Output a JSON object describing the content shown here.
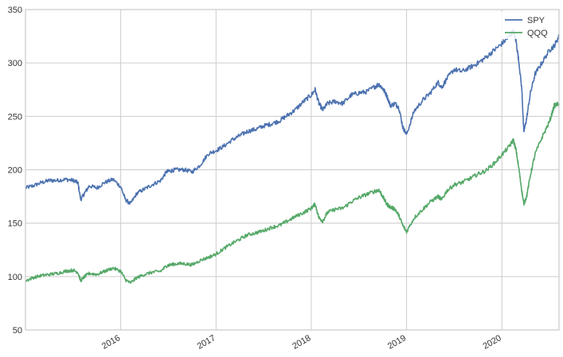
{
  "chart_data": {
    "type": "line",
    "title": "",
    "xlabel": "",
    "ylabel": "",
    "xlim": [
      2015.0,
      2020.6
    ],
    "ylim": [
      50,
      350
    ],
    "grid": true,
    "legend_position": "top-right",
    "yticks": [
      50,
      100,
      150,
      200,
      250,
      300,
      350
    ],
    "xticks": [
      {
        "value": 2016.0,
        "label": "2016"
      },
      {
        "value": 2017.0,
        "label": "2017"
      },
      {
        "value": 2018.0,
        "label": "2018"
      },
      {
        "value": 2019.0,
        "label": "2019"
      },
      {
        "value": 2020.0,
        "label": "2020"
      }
    ],
    "series": [
      {
        "name": "SPY",
        "color": "#4c72b0",
        "x": [
          2015.0,
          2015.08,
          2015.17,
          2015.25,
          2015.33,
          2015.42,
          2015.5,
          2015.55,
          2015.58,
          2015.62,
          2015.67,
          2015.75,
          2015.83,
          2015.92,
          2016.0,
          2016.05,
          2016.1,
          2016.17,
          2016.25,
          2016.33,
          2016.42,
          2016.48,
          2016.52,
          2016.58,
          2016.67,
          2016.75,
          2016.83,
          2016.92,
          2017.0,
          2017.08,
          2017.17,
          2017.25,
          2017.33,
          2017.42,
          2017.5,
          2017.58,
          2017.67,
          2017.75,
          2017.83,
          2017.92,
          2018.0,
          2018.04,
          2018.08,
          2018.12,
          2018.17,
          2018.25,
          2018.33,
          2018.42,
          2018.5,
          2018.58,
          2018.67,
          2018.71,
          2018.75,
          2018.79,
          2018.83,
          2018.88,
          2018.92,
          2018.96,
          2019.0,
          2019.08,
          2019.17,
          2019.25,
          2019.33,
          2019.37,
          2019.42,
          2019.5,
          2019.58,
          2019.67,
          2019.75,
          2019.83,
          2019.92,
          2020.0,
          2020.08,
          2020.12,
          2020.15,
          2020.18,
          2020.21,
          2020.23,
          2020.26,
          2020.3,
          2020.35,
          2020.42,
          2020.5,
          2020.55,
          2020.6
        ],
        "values": [
          183,
          185,
          188,
          190,
          190,
          191,
          190,
          188,
          172,
          178,
          185,
          183,
          188,
          191,
          184,
          172,
          168,
          178,
          182,
          186,
          190,
          198,
          199,
          200,
          200,
          198,
          204,
          215,
          218,
          222,
          228,
          232,
          236,
          238,
          241,
          243,
          246,
          251,
          256,
          264,
          270,
          275,
          262,
          256,
          262,
          264,
          262,
          270,
          272,
          273,
          278,
          280,
          276,
          270,
          260,
          262,
          258,
          240,
          233,
          255,
          265,
          272,
          282,
          277,
          285,
          294,
          292,
          296,
          300,
          305,
          312,
          318,
          325,
          330,
          320,
          300,
          275,
          235,
          248,
          272,
          290,
          300,
          312,
          316,
          325
        ],
        "show_in_legend": true
      },
      {
        "name": "QQQ",
        "color": "#55a868",
        "x": [
          2015.0,
          2015.08,
          2015.17,
          2015.25,
          2015.33,
          2015.42,
          2015.5,
          2015.55,
          2015.58,
          2015.62,
          2015.67,
          2015.75,
          2015.83,
          2015.92,
          2016.0,
          2016.05,
          2016.1,
          2016.17,
          2016.25,
          2016.33,
          2016.42,
          2016.48,
          2016.52,
          2016.58,
          2016.67,
          2016.75,
          2016.83,
          2016.92,
          2017.0,
          2017.08,
          2017.17,
          2017.25,
          2017.33,
          2017.42,
          2017.5,
          2017.58,
          2017.67,
          2017.75,
          2017.83,
          2017.92,
          2018.0,
          2018.04,
          2018.08,
          2018.12,
          2018.17,
          2018.25,
          2018.33,
          2018.42,
          2018.5,
          2018.58,
          2018.67,
          2018.71,
          2018.75,
          2018.79,
          2018.83,
          2018.88,
          2018.92,
          2018.96,
          2019.0,
          2019.08,
          2019.17,
          2019.25,
          2019.33,
          2019.37,
          2019.42,
          2019.5,
          2019.58,
          2019.67,
          2019.75,
          2019.83,
          2019.92,
          2020.0,
          2020.08,
          2020.12,
          2020.15,
          2020.18,
          2020.21,
          2020.23,
          2020.26,
          2020.3,
          2020.35,
          2020.42,
          2020.5,
          2020.55,
          2020.6
        ],
        "values": [
          96,
          99,
          101,
          102,
          103,
          105,
          106,
          104,
          96,
          100,
          103,
          102,
          105,
          108,
          105,
          97,
          94,
          99,
          102,
          104,
          105,
          110,
          111,
          112,
          112,
          111,
          115,
          118,
          121,
          126,
          131,
          135,
          139,
          141,
          143,
          146,
          148,
          152,
          156,
          160,
          164,
          168,
          155,
          152,
          160,
          163,
          164,
          170,
          174,
          177,
          180,
          181,
          175,
          168,
          165,
          163,
          157,
          148,
          142,
          155,
          163,
          170,
          175,
          172,
          180,
          186,
          188,
          192,
          196,
          199,
          206,
          214,
          222,
          228,
          218,
          200,
          180,
          168,
          175,
          195,
          215,
          230,
          245,
          260,
          262
        ],
        "show_in_legend": true
      }
    ]
  }
}
